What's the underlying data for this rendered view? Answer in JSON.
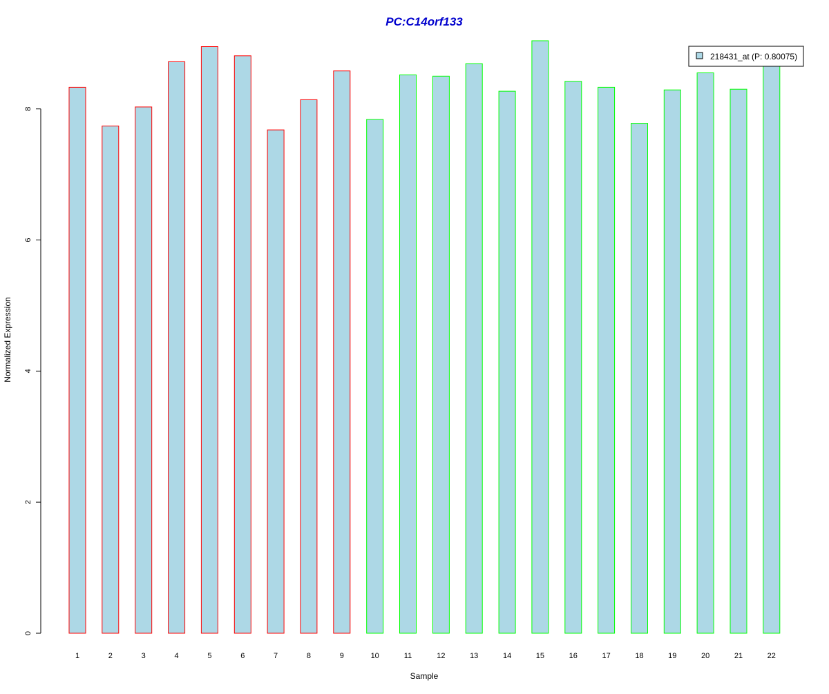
{
  "chart_data": {
    "type": "bar",
    "title": "PC:C14orf133",
    "xlabel": "Sample",
    "ylabel": "Normalized Expression",
    "categories": [
      "1",
      "2",
      "3",
      "4",
      "5",
      "6",
      "7",
      "8",
      "9",
      "10",
      "11",
      "12",
      "13",
      "14",
      "15",
      "16",
      "17",
      "18",
      "19",
      "20",
      "21",
      "22"
    ],
    "series": [
      {
        "name": "218431_at (P: 0.80075)",
        "values": [
          8.33,
          7.74,
          8.03,
          8.72,
          8.95,
          8.81,
          7.68,
          8.14,
          8.58,
          7.84,
          8.52,
          8.5,
          8.69,
          8.27,
          9.04,
          8.42,
          8.33,
          7.78,
          8.29,
          8.55,
          8.3,
          8.72
        ]
      }
    ],
    "bar_groups": [
      "red",
      "red",
      "red",
      "red",
      "red",
      "red",
      "red",
      "red",
      "red",
      "green",
      "green",
      "green",
      "green",
      "green",
      "green",
      "green",
      "green",
      "green",
      "green",
      "green",
      "green",
      "green"
    ],
    "yticks": [
      0,
      2,
      4,
      6,
      8
    ],
    "ylim": [
      0,
      9.04
    ],
    "grid": false,
    "legend_position": "top-right",
    "colors": {
      "bar_fill": "#add8e6",
      "group_red": "#ff0000",
      "group_green": "#00ff00",
      "title": "#0000cd",
      "axis": "#000000"
    }
  }
}
